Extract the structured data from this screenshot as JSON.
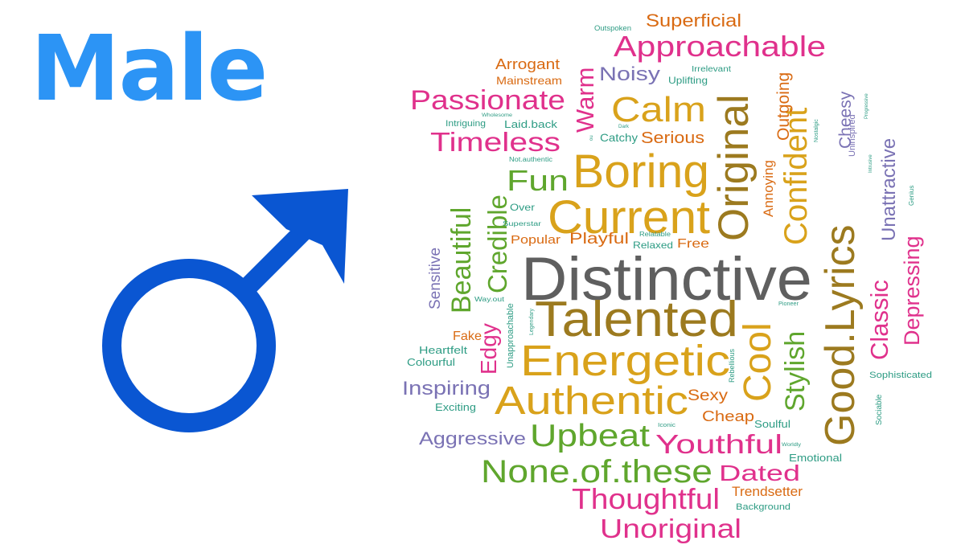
{
  "heading": {
    "text": "Male",
    "color": "#2C94F5"
  },
  "symbol": {
    "icon": "male-gender-icon",
    "color": "#0A56D2"
  },
  "palette": {
    "magenta": "#E0318C",
    "orange": "#D96A12",
    "mustard": "#D9A21B",
    "green": "#5FA62D",
    "olive": "#9C7A1F",
    "purple": "#7A72B4",
    "teal": "#2E9C84",
    "gray": "#5F5F5F"
  },
  "words": [
    {
      "text": "Distinctive",
      "color": "gray"
    },
    {
      "text": "Talented",
      "color": "olive"
    },
    {
      "text": "Energetic",
      "color": "mustard"
    },
    {
      "text": "Authentic",
      "color": "mustard"
    },
    {
      "text": "Current",
      "color": "mustard"
    },
    {
      "text": "Boring",
      "color": "mustard"
    },
    {
      "text": "Original",
      "color": "olive"
    },
    {
      "text": "Good.Lyrics",
      "color": "olive"
    },
    {
      "text": "Cool",
      "color": "mustard"
    },
    {
      "text": "Confident",
      "color": "mustard"
    },
    {
      "text": "Approachable",
      "color": "magenta"
    },
    {
      "text": "Calm",
      "color": "mustard"
    },
    {
      "text": "Passionate",
      "color": "magenta"
    },
    {
      "text": "Timeless",
      "color": "magenta"
    },
    {
      "text": "Fun",
      "color": "green"
    },
    {
      "text": "Beautiful",
      "color": "green"
    },
    {
      "text": "Credible",
      "color": "green"
    },
    {
      "text": "None.of.these",
      "color": "green"
    },
    {
      "text": "Thoughtful",
      "color": "magenta"
    },
    {
      "text": "Unoriginal",
      "color": "magenta"
    },
    {
      "text": "Upbeat",
      "color": "green"
    },
    {
      "text": "Youthful",
      "color": "magenta"
    },
    {
      "text": "Dated",
      "color": "magenta"
    },
    {
      "text": "Classic",
      "color": "magenta"
    },
    {
      "text": "Depressing",
      "color": "magenta"
    },
    {
      "text": "Stylish",
      "color": "green"
    },
    {
      "text": "Unattractive",
      "color": "purple"
    },
    {
      "text": "Warm",
      "color": "magenta"
    },
    {
      "text": "Edgy",
      "color": "magenta"
    },
    {
      "text": "Noisy",
      "color": "purple"
    },
    {
      "text": "Superficial",
      "color": "orange"
    },
    {
      "text": "Serious",
      "color": "orange"
    },
    {
      "text": "Cheesy",
      "color": "purple"
    },
    {
      "text": "Outgoing",
      "color": "orange"
    },
    {
      "text": "Inspiring",
      "color": "purple"
    },
    {
      "text": "Aggressive",
      "color": "purple"
    },
    {
      "text": "Sensitive",
      "color": "purple"
    },
    {
      "text": "Annoying",
      "color": "orange"
    },
    {
      "text": "Playful",
      "color": "orange"
    },
    {
      "text": "Arrogant",
      "color": "orange"
    },
    {
      "text": "Mainstream",
      "color": "orange"
    },
    {
      "text": "Sexy",
      "color": "orange"
    },
    {
      "text": "Cheap",
      "color": "orange"
    },
    {
      "text": "Trendsetter",
      "color": "orange"
    },
    {
      "text": "Fake",
      "color": "orange"
    },
    {
      "text": "Popular",
      "color": "orange"
    },
    {
      "text": "Free",
      "color": "orange"
    },
    {
      "text": "Laid.back",
      "color": "teal"
    },
    {
      "text": "Catchy",
      "color": "teal"
    },
    {
      "text": "Heartfelt",
      "color": "teal"
    },
    {
      "text": "Colourful",
      "color": "teal"
    },
    {
      "text": "Exciting",
      "color": "teal"
    },
    {
      "text": "Emotional",
      "color": "teal"
    },
    {
      "text": "Sophisticated",
      "color": "teal"
    },
    {
      "text": "Uplifting",
      "color": "teal"
    },
    {
      "text": "Relaxed",
      "color": "teal"
    },
    {
      "text": "Soulful",
      "color": "teal"
    },
    {
      "text": "Over",
      "color": "teal"
    },
    {
      "text": "Intriguing",
      "color": "teal"
    },
    {
      "text": "Background",
      "color": "teal"
    },
    {
      "text": "Unapproachable",
      "color": "teal"
    },
    {
      "text": "Uninspired",
      "color": "purple"
    },
    {
      "text": "Rebellious",
      "color": "teal"
    },
    {
      "text": "Sociable",
      "color": "teal"
    },
    {
      "text": "Genius",
      "color": "teal"
    },
    {
      "text": "Irrelevant",
      "color": "teal"
    },
    {
      "text": "Outspoken",
      "color": "teal"
    },
    {
      "text": "Not.authentic",
      "color": "teal"
    },
    {
      "text": "Superstar",
      "color": "teal"
    },
    {
      "text": "Relatable",
      "color": "teal"
    },
    {
      "text": "Way.out",
      "color": "teal"
    },
    {
      "text": "Legendary",
      "color": "teal"
    },
    {
      "text": "Wholesome",
      "color": "teal"
    },
    {
      "text": "Dark",
      "color": "teal"
    },
    {
      "text": "Nostalgic",
      "color": "teal"
    },
    {
      "text": "Progressive",
      "color": "teal"
    },
    {
      "text": "Intrusive",
      "color": "teal"
    },
    {
      "text": "Iconic",
      "color": "teal"
    },
    {
      "text": "Worldly",
      "color": "teal"
    },
    {
      "text": "Pioneer",
      "color": "teal"
    },
    {
      "text": "ou",
      "color": "teal"
    }
  ]
}
